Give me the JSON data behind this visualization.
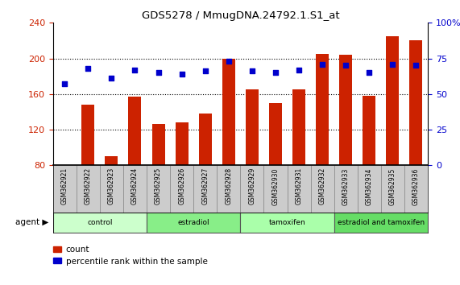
{
  "title": "GDS5278 / MmugDNA.24792.1.S1_at",
  "samples": [
    "GSM362921",
    "GSM362922",
    "GSM362923",
    "GSM362924",
    "GSM362925",
    "GSM362926",
    "GSM362927",
    "GSM362928",
    "GSM362929",
    "GSM362930",
    "GSM362931",
    "GSM362932",
    "GSM362933",
    "GSM362934",
    "GSM362935",
    "GSM362936"
  ],
  "counts": [
    80,
    148,
    90,
    157,
    126,
    128,
    138,
    200,
    165,
    150,
    165,
    205,
    204,
    158,
    225,
    220
  ],
  "percentile_ranks": [
    57,
    68,
    61,
    67,
    65,
    64,
    66,
    73,
    66,
    65,
    67,
    71,
    70,
    65,
    71,
    70
  ],
  "groups": [
    {
      "label": "control",
      "start": 0,
      "end": 4,
      "color": "#ccffcc"
    },
    {
      "label": "estradiol",
      "start": 4,
      "end": 8,
      "color": "#88ee88"
    },
    {
      "label": "tamoxifen",
      "start": 8,
      "end": 12,
      "color": "#aaffaa"
    },
    {
      "label": "estradiol and tamoxifen",
      "start": 12,
      "end": 16,
      "color": "#66dd66"
    }
  ],
  "bar_color": "#cc2200",
  "dot_color": "#0000cc",
  "ylim_left": [
    80,
    240
  ],
  "ylim_right": [
    0,
    100
  ],
  "yticks_left": [
    80,
    120,
    160,
    200,
    240
  ],
  "yticks_right": [
    0,
    25,
    50,
    75,
    100
  ],
  "grid_lines": [
    120,
    160,
    200
  ],
  "ylabel_left_color": "#cc2200",
  "ylabel_right_color": "#0000cc",
  "background_color": "#ffffff",
  "agent_label": "agent",
  "legend_count": "count",
  "legend_pct": "percentile rank within the sample",
  "xtick_box_color": "#cccccc",
  "xtick_box_edge": "#888888"
}
